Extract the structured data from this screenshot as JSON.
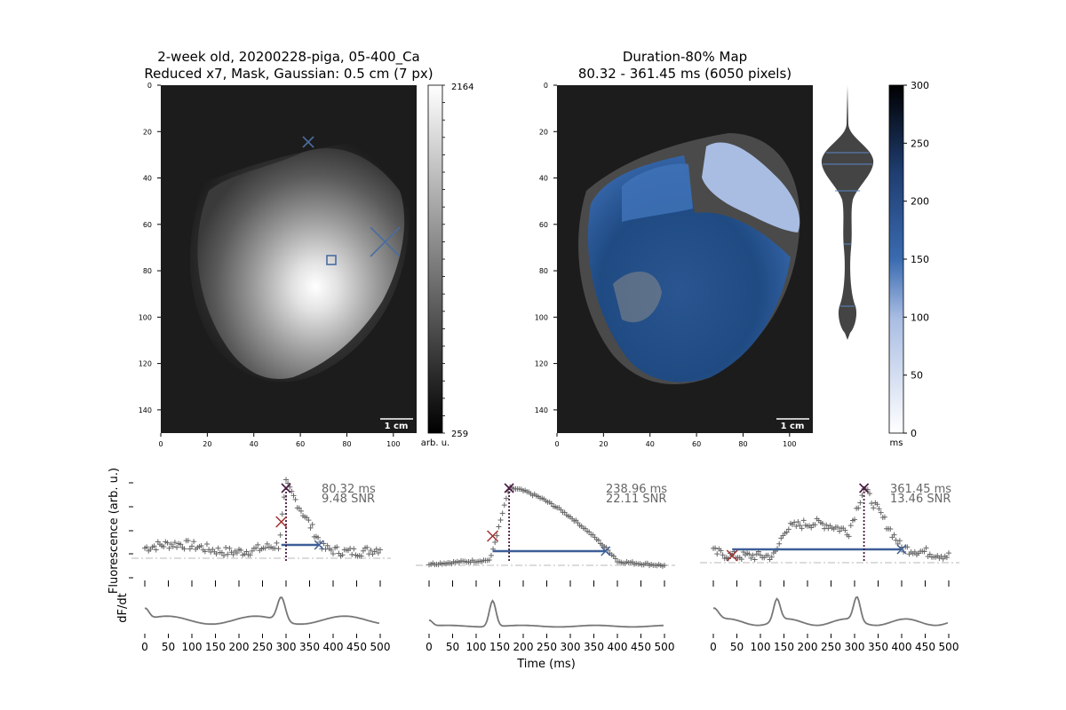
{
  "figure": {
    "panel_a": {
      "title_line1": "2-week old, 20200228-piga, 05-400_Ca",
      "title_line2": "Reduced x7, Mask, Gaussian: 0.5 cm (7 px)",
      "scalebar_label": "1 cm",
      "colorbar_max": "2164",
      "colorbar_min": "259",
      "colorbar_unit": "arb. u."
    },
    "panel_b": {
      "title_line1": "Duration-80% Map",
      "title_line2": "80.32 - 361.45 ms (6050 pixels)",
      "scalebar_label": "1 cm",
      "colorbar_unit": "ms"
    },
    "traces": {
      "ylabel_top": "Fluorescence (arb. u.)",
      "ylabel_bottom": "dF/dt",
      "xlabel": "Time (ms)",
      "panels": [
        {
          "ms": "80.32 ms",
          "snr": "9.48 SNR"
        },
        {
          "ms": "238.96 ms",
          "snr": "22.11 SNR"
        },
        {
          "ms": "361.45 ms",
          "snr": "13.46 SNR"
        }
      ]
    },
    "colors": {
      "background": "#ffffff",
      "image_bg": "#1c1c1c",
      "heart_blue": "#3a6bb0",
      "heart_dark_blue": "#1f4a82",
      "light_blue": "#a9bde3",
      "marker_gray": "#666666",
      "apd_line": "#3d5e97",
      "red_x": "#a03030",
      "purple": "#4a1a40",
      "baseline_gray": "#c0c0c0"
    }
  },
  "chart_data": [
    {
      "type": "heatmap",
      "title": "2-week old, 20200228-piga, 05-400_Ca\nReduced x7, Mask, Gaussian: 0.5 cm (7 px)",
      "xticks": [
        0,
        20,
        40,
        60,
        80,
        100
      ],
      "yticks": [
        0,
        20,
        40,
        60,
        80,
        100,
        120,
        140
      ],
      "xlim": [
        0,
        110
      ],
      "ylim": [
        150,
        0
      ],
      "colorbar": {
        "min": 259,
        "max": 2164,
        "unit": "arb. u."
      },
      "markers": [
        {
          "shape": "x",
          "x": 63,
          "y": 24
        },
        {
          "shape": "square",
          "x": 73,
          "y": 75
        },
        {
          "shape": "x",
          "x": 96,
          "y": 67
        }
      ]
    },
    {
      "type": "heatmap",
      "title": "Duration-80% Map\n80.32 - 361.45 ms (6050 pixels)",
      "xticks": [
        0,
        20,
        40,
        60,
        80,
        100
      ],
      "yticks": [
        0,
        20,
        40,
        60,
        80,
        100,
        120,
        140
      ],
      "xlim": [
        0,
        110
      ],
      "ylim": [
        150,
        0
      ],
      "colorbar": {
        "min": 0,
        "max": 300,
        "ticks": [
          0,
          50,
          100,
          150,
          200,
          250,
          300
        ],
        "unit": "ms"
      }
    },
    {
      "type": "scatter",
      "xlabel": "Time (ms)",
      "ylabel": "Fluorescence (arb. u.)",
      "xticks": [
        0,
        50,
        100,
        150,
        200,
        250,
        300,
        350,
        400,
        450,
        500
      ],
      "xlim": [
        0,
        500
      ],
      "annotation": [
        "80.32 ms",
        "9.48 SNR"
      ],
      "apd_start": 290,
      "apd_end": 370,
      "peak": 300
    },
    {
      "type": "scatter",
      "xlabel": "Time (ms)",
      "xticks": [
        0,
        50,
        100,
        150,
        200,
        250,
        300,
        350,
        400,
        450,
        500
      ],
      "xlim": [
        0,
        500
      ],
      "annotation": [
        "238.96 ms",
        "22.11 SNR"
      ],
      "apd_start": 135,
      "apd_end": 375,
      "peak": 170
    },
    {
      "type": "scatter",
      "xlabel": "Time (ms)",
      "xticks": [
        0,
        50,
        100,
        150,
        200,
        250,
        300,
        350,
        400,
        450,
        500
      ],
      "xlim": [
        0,
        500
      ],
      "annotation": [
        "361.45 ms",
        "13.46 SNR"
      ],
      "apd_start": 40,
      "apd_end": 400,
      "peak": 320
    }
  ]
}
